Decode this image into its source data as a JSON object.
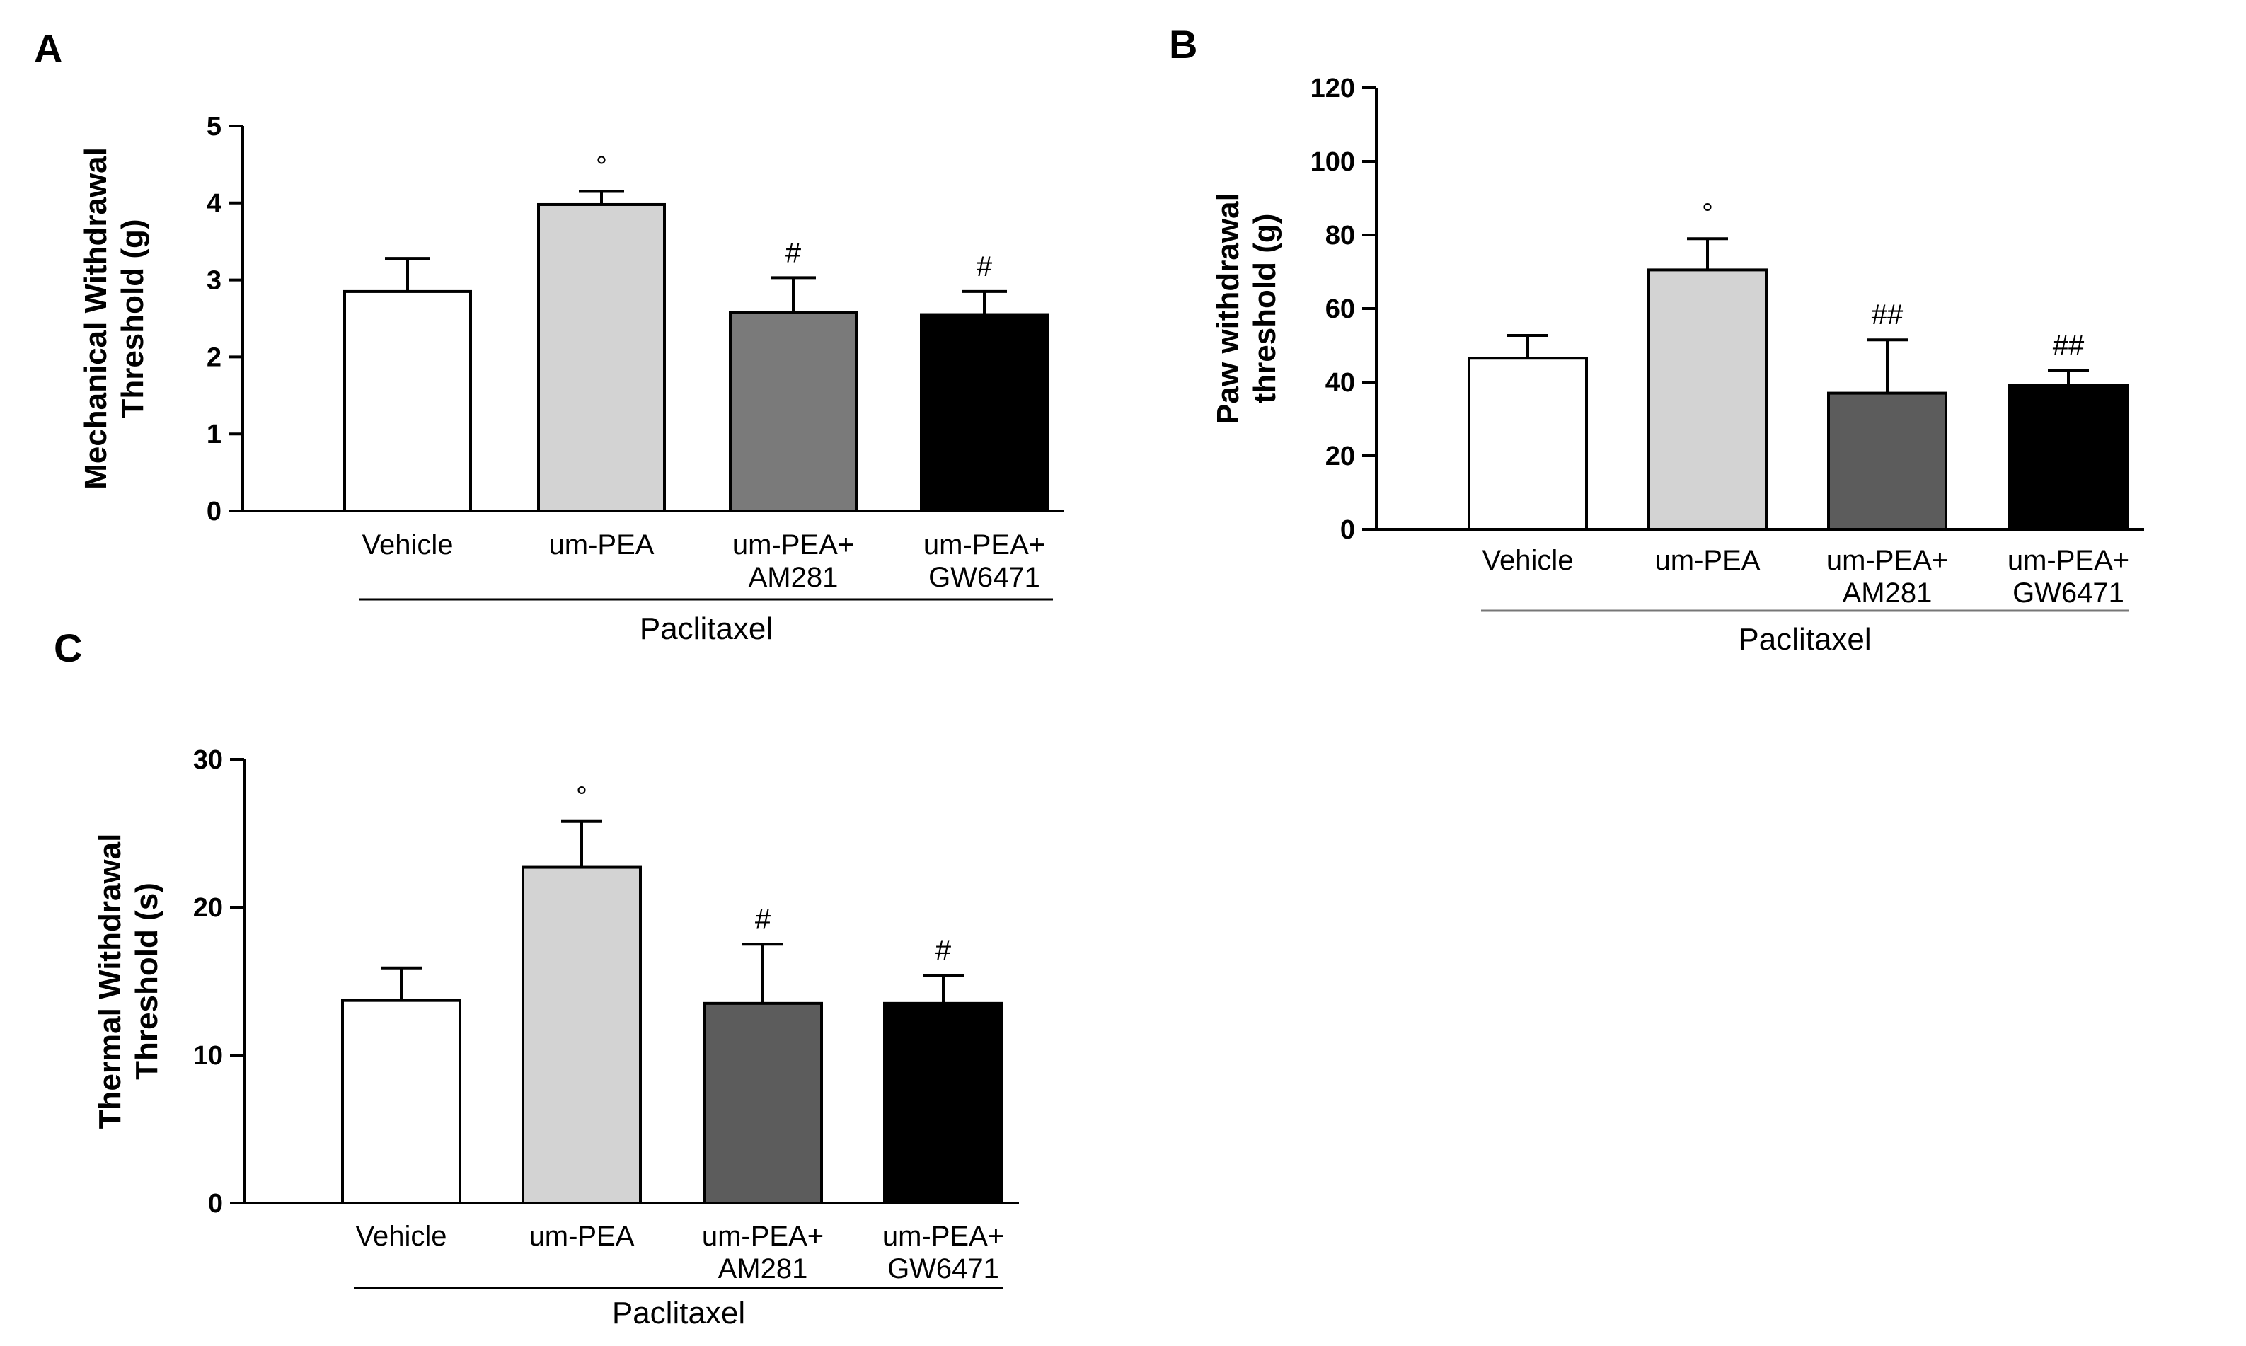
{
  "figure": {
    "panels": [
      {
        "letter": "A"
      },
      {
        "letter": "B"
      },
      {
        "letter": "C"
      }
    ]
  },
  "chart_data": [
    {
      "type": "bar",
      "panel": "A",
      "categories": [
        [
          "Vehicle"
        ],
        [
          "um-PEA"
        ],
        [
          "um-PEA+",
          "AM281"
        ],
        [
          "um-PEA+",
          "GW6471"
        ]
      ],
      "values": [
        2.85,
        3.98,
        2.58,
        2.55
      ],
      "errors": [
        0.43,
        0.17,
        0.45,
        0.3
      ],
      "annotations": [
        "",
        "°",
        "#",
        "#"
      ],
      "colors": [
        "#ffffff",
        "#d3d3d3",
        "#7a7a7a",
        "#000000"
      ],
      "ylabel": [
        "Mechanical Withdrawal",
        "Threshold (g)"
      ],
      "ylim": [
        0,
        5
      ],
      "yticks": [
        0,
        1,
        2,
        3,
        4,
        5
      ],
      "group_label": "Paclitaxel"
    },
    {
      "type": "bar",
      "panel": "B",
      "categories": [
        [
          "Vehicle"
        ],
        [
          "um-PEA"
        ],
        [
          "um-PEA+",
          "AM281"
        ],
        [
          "um-PEA+",
          "GW6471"
        ]
      ],
      "values": [
        46.5,
        70.5,
        37.0,
        39.2
      ],
      "errors": [
        6.2,
        8.5,
        14.5,
        4.0
      ],
      "annotations": [
        "",
        "°",
        "##",
        "##"
      ],
      "colors": [
        "#ffffff",
        "#d3d3d3",
        "#5c5c5c",
        "#000000"
      ],
      "ylabel": [
        "Paw withdrawal",
        "threshold (g)"
      ],
      "ylim": [
        0,
        120
      ],
      "yticks": [
        0,
        20,
        40,
        60,
        80,
        100,
        120
      ],
      "group_label": "Paclitaxel"
    },
    {
      "type": "bar",
      "panel": "C",
      "categories": [
        [
          "Vehicle"
        ],
        [
          "um-PEA"
        ],
        [
          "um-PEA+",
          "AM281"
        ],
        [
          "um-PEA+",
          "GW6471"
        ]
      ],
      "values": [
        13.7,
        22.7,
        13.5,
        13.5
      ],
      "errors": [
        2.2,
        3.1,
        4.0,
        1.9
      ],
      "annotations": [
        "",
        "°",
        "#",
        "#"
      ],
      "colors": [
        "#ffffff",
        "#d3d3d3",
        "#5c5c5c",
        "#000000"
      ],
      "ylabel": [
        "Thermal Withdrawal",
        "Threshold (s)"
      ],
      "ylim": [
        0,
        30
      ],
      "yticks": [
        0,
        10,
        20,
        30
      ],
      "group_label": "Paclitaxel"
    }
  ]
}
